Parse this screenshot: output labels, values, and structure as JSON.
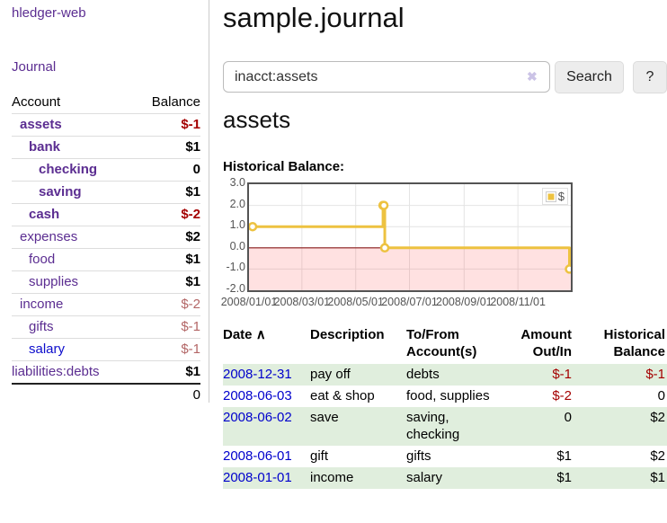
{
  "app": {
    "brand": "hledger-web"
  },
  "sidebar": {
    "journal_link": "Journal",
    "accounts": {
      "headers": {
        "account": "Account",
        "balance": "Balance"
      },
      "rows": [
        {
          "name": "assets",
          "balance": "$-1"
        },
        {
          "name": "bank",
          "balance": "$1"
        },
        {
          "name": "checking",
          "balance": "0"
        },
        {
          "name": "saving",
          "balance": "$1"
        },
        {
          "name": "cash",
          "balance": "$-2"
        },
        {
          "name": "expenses",
          "balance": "$2"
        },
        {
          "name": "food",
          "balance": "$1"
        },
        {
          "name": "supplies",
          "balance": "$1"
        },
        {
          "name": "income",
          "balance": "$-2"
        },
        {
          "name": "gifts",
          "balance": "$-1"
        },
        {
          "name": "salary",
          "balance": "$-1"
        },
        {
          "name": "liabilities:debts",
          "balance": "$1"
        }
      ],
      "total": "0"
    }
  },
  "header": {
    "title": "sample.journal"
  },
  "search": {
    "value": "inacct:assets",
    "clear_icon": "✖",
    "button_label": "Search",
    "help_label": "?"
  },
  "account_page": {
    "heading": "assets",
    "chart_label": "Historical Balance:"
  },
  "chart_data": {
    "type": "line",
    "step": true,
    "series": [
      {
        "name": "$",
        "color": "#edc240",
        "points": [
          [
            "2008-01-01",
            1
          ],
          [
            "2008-06-01",
            2
          ],
          [
            "2008-06-02",
            2
          ],
          [
            "2008-06-03",
            0
          ],
          [
            "2008-12-31",
            -1
          ]
        ]
      }
    ],
    "x_range": [
      "2008-01-01",
      "2008-12-31"
    ],
    "ylim": [
      -2,
      3
    ],
    "yticks": [
      3,
      2,
      1,
      0,
      -1,
      -2
    ],
    "xticks": [
      "2008/01/01",
      "2008/03/01",
      "2008/05/01",
      "2008/07/01",
      "2008/09/01",
      "2008/11/01"
    ],
    "grid": true,
    "legend_position": "top-right",
    "negative_region_highlight": true,
    "zero_line_color": "#8b1a1a"
  },
  "register": {
    "headers": {
      "date": "Date",
      "sort_icon": "∧",
      "description": "Description",
      "accounts": "To/From Account(s)",
      "amount": "Amount Out/In",
      "balance": "Historical Balance"
    },
    "rows": [
      {
        "date": "2008-12-31",
        "description": "pay off",
        "accounts": "debts",
        "amount": "$-1",
        "balance": "$-1"
      },
      {
        "date": "2008-06-03",
        "description": "eat & shop",
        "accounts": "food, supplies",
        "amount": "$-2",
        "balance": "0"
      },
      {
        "date": "2008-06-02",
        "description": "save",
        "accounts": "saving, checking",
        "amount": "0",
        "balance": "$2"
      },
      {
        "date": "2008-06-01",
        "description": "gift",
        "accounts": "gifts",
        "amount": "$1",
        "balance": "$2"
      },
      {
        "date": "2008-01-01",
        "description": "income",
        "accounts": "salary",
        "amount": "$1",
        "balance": "$1"
      }
    ]
  }
}
